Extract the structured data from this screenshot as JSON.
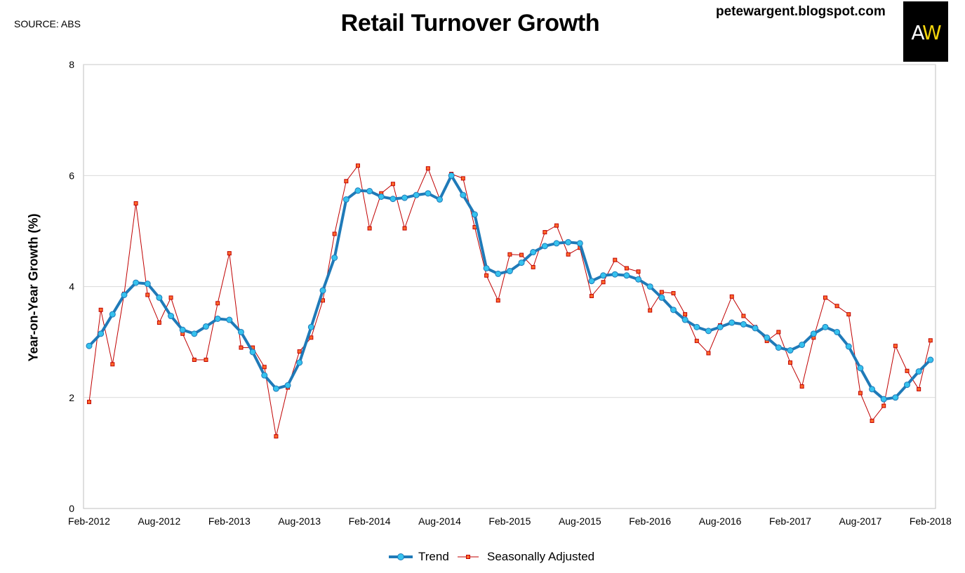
{
  "header": {
    "source": "SOURCE: ABS",
    "title": "Retail Turnover Growth",
    "blog": "petewargent.blogspot.com",
    "logo_a": "A",
    "logo_w": "W"
  },
  "colors": {
    "trend": "#1f7ab8",
    "trend_marker": "#36c2ee",
    "sa": "#c00000",
    "sa_marker": "#ff6a2a",
    "grid": "#d9d9d9"
  },
  "chart_data": {
    "type": "line",
    "title": "Retail Turnover Growth",
    "xlabel": "",
    "ylabel": "Year-on-Year Growth (%)",
    "ylim": [
      0,
      8
    ],
    "yticks": [
      "0",
      "2",
      "4",
      "6",
      "8"
    ],
    "xticks": [
      "Feb-2012",
      "Aug-2012",
      "Feb-2013",
      "Aug-2013",
      "Feb-2014",
      "Aug-2014",
      "Feb-2015",
      "Aug-2015",
      "Feb-2016",
      "Aug-2016",
      "Feb-2017",
      "Aug-2017",
      "Feb-2018"
    ],
    "x_start": "Feb-2012",
    "x_end": "Feb-2018",
    "grid": true,
    "legend_position": "bottom",
    "series": [
      {
        "name": "Trend",
        "values": [
          2.93,
          3.15,
          3.5,
          3.85,
          4.07,
          4.05,
          3.8,
          3.47,
          3.22,
          3.15,
          3.28,
          3.42,
          3.4,
          3.18,
          2.82,
          2.4,
          2.16,
          2.22,
          2.63,
          3.27,
          3.93,
          4.52,
          5.57,
          5.73,
          5.72,
          5.62,
          5.58,
          5.6,
          5.65,
          5.68,
          5.57,
          6.0,
          5.65,
          5.3,
          4.33,
          4.23,
          4.28,
          4.43,
          4.62,
          4.73,
          4.78,
          4.8,
          4.78,
          4.1,
          4.2,
          4.22,
          4.2,
          4.13,
          4.0,
          3.8,
          3.58,
          3.4,
          3.27,
          3.2,
          3.27,
          3.35,
          3.32,
          3.25,
          3.08,
          2.9,
          2.85,
          2.95,
          3.15,
          3.27,
          3.18,
          2.92,
          2.53,
          2.15,
          1.97,
          2.0,
          2.23,
          2.47,
          2.68
        ]
      },
      {
        "name": "Seasonally Adjusted",
        "values": [
          1.92,
          3.58,
          2.6,
          3.87,
          5.5,
          3.85,
          3.35,
          3.8,
          3.15,
          2.68,
          2.68,
          3.7,
          4.6,
          2.9,
          2.9,
          2.55,
          1.3,
          2.18,
          2.83,
          3.08,
          3.75,
          4.95,
          5.9,
          6.18,
          5.05,
          5.68,
          5.85,
          5.05,
          5.65,
          6.13,
          5.58,
          6.03,
          5.95,
          5.07,
          4.2,
          3.75,
          4.58,
          4.57,
          4.35,
          4.98,
          5.1,
          4.58,
          4.7,
          3.83,
          4.08,
          4.48,
          4.33,
          4.27,
          3.57,
          3.9,
          3.88,
          3.5,
          3.02,
          2.8,
          3.3,
          3.82,
          3.47,
          3.27,
          3.02,
          3.18,
          2.63,
          2.2,
          3.08,
          3.8,
          3.65,
          3.5,
          2.08,
          1.58,
          1.85,
          2.93,
          2.48,
          2.15,
          3.03
        ]
      }
    ]
  }
}
